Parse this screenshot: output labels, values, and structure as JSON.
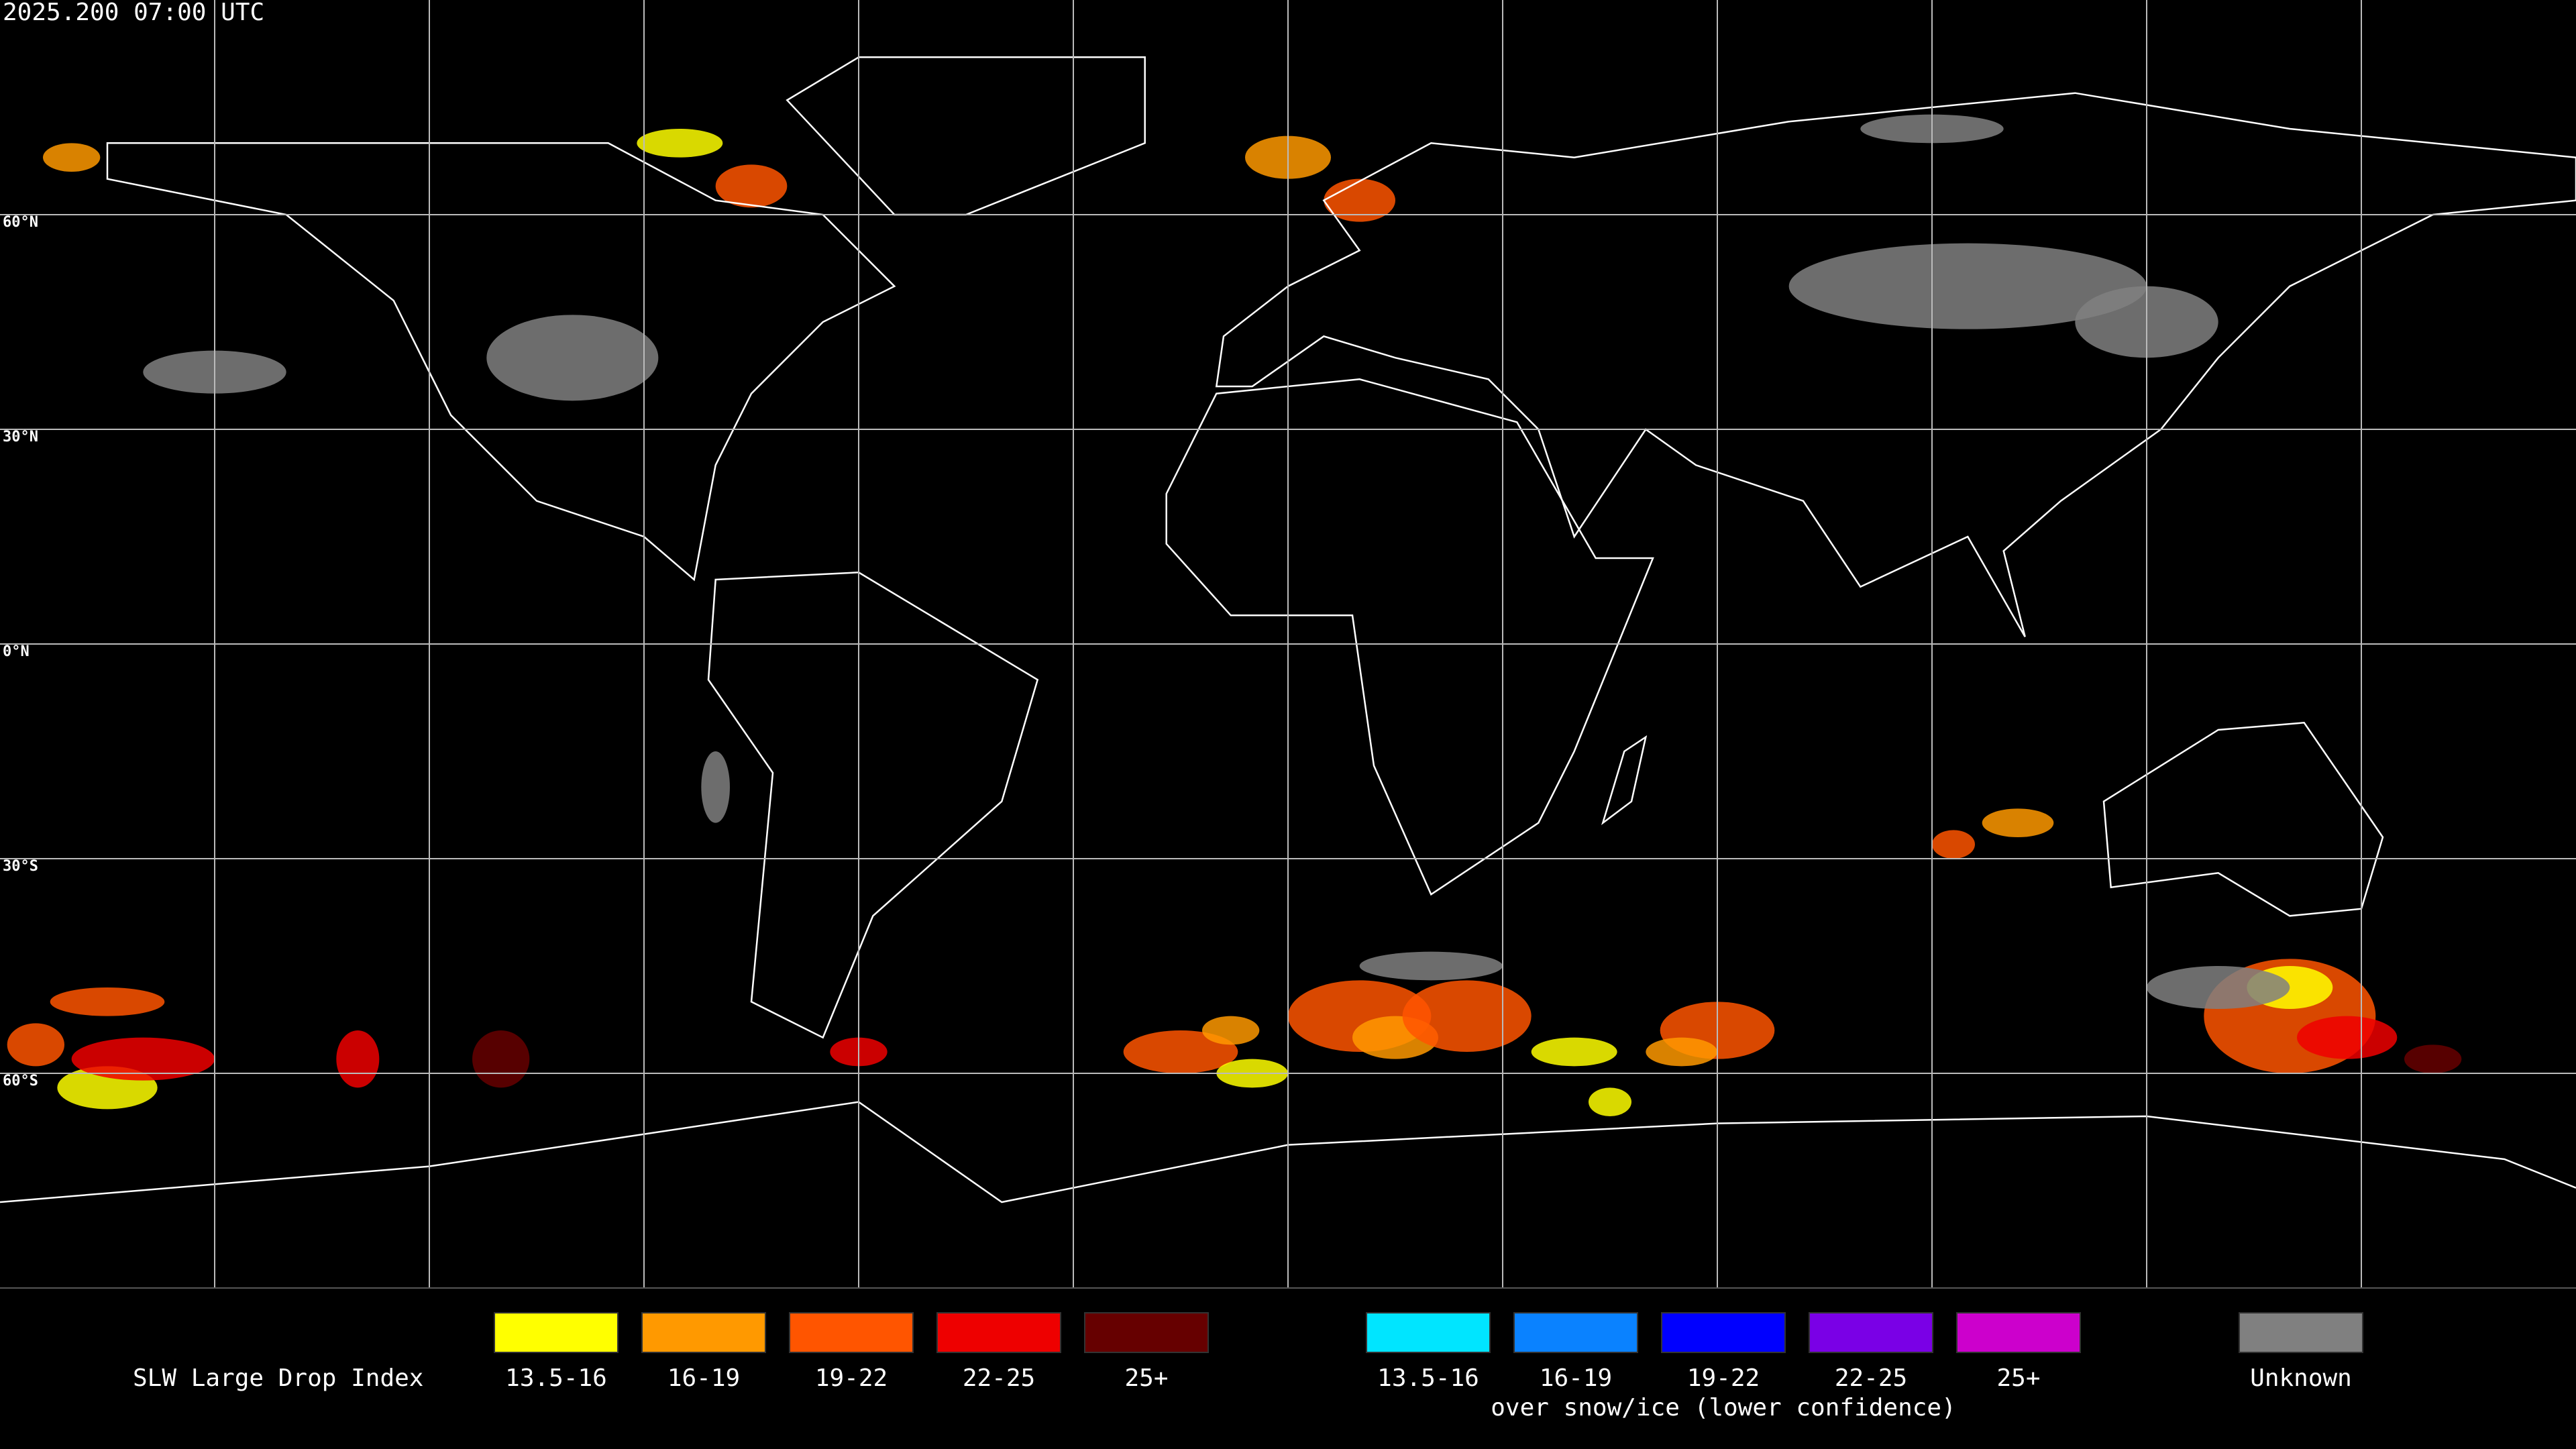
{
  "timestamp": "2025.200 07:00 UTC",
  "latitude_labels": [
    "60°N",
    "30°N",
    "0°N",
    "30°S",
    "60°S"
  ],
  "legend": {
    "title": "SLW Large Drop Index",
    "main": [
      {
        "label": "13.5-16",
        "color": "#ffff00"
      },
      {
        "label": "16-19",
        "color": "#ff9900"
      },
      {
        "label": "19-22",
        "color": "#ff5500"
      },
      {
        "label": "22-25",
        "color": "#ee0000"
      },
      {
        "label": "25+",
        "color": "#660000"
      }
    ],
    "snow_ice": [
      {
        "label": "13.5-16",
        "color": "#00e5ff"
      },
      {
        "label": "16-19",
        "color": "#0a82ff"
      },
      {
        "label": "19-22",
        "color": "#0000ff"
      },
      {
        "label": "22-25",
        "color": "#7a00e6"
      },
      {
        "label": "25+",
        "color": "#cc00cc"
      }
    ],
    "snow_ice_caption": "over snow/ice (lower confidence)",
    "unknown": {
      "label": "Unknown",
      "color": "#808080"
    }
  }
}
